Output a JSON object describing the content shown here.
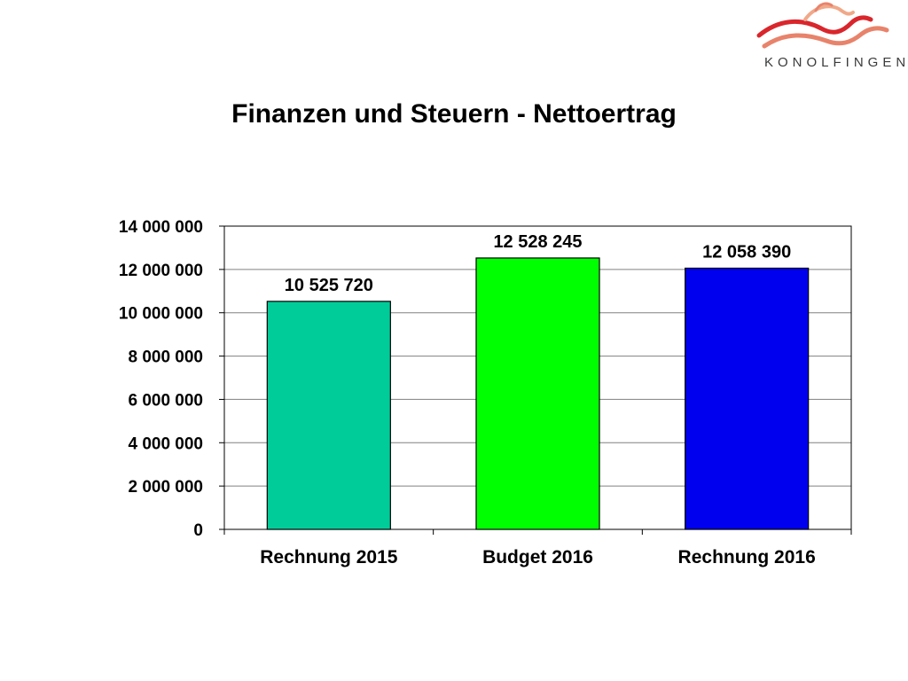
{
  "logo": {
    "text": "KONOLFINGEN",
    "colors": [
      "#d9262c",
      "#e8836b",
      "#f0a889"
    ]
  },
  "chart_data": {
    "type": "bar",
    "title": "Finanzen und Steuern - Nettoertrag",
    "categories": [
      "Rechnung 2015",
      "Budget 2016",
      "Rechnung 2016"
    ],
    "values": [
      10525720,
      12528245,
      12058390
    ],
    "value_labels": [
      "10 525 720",
      "12 528 245",
      "12 058 390"
    ],
    "colors": [
      "#00cc99",
      "#00ff00",
      "#0000ee"
    ],
    "ylim": [
      0,
      14000000
    ],
    "yticks": [
      0,
      2000000,
      4000000,
      6000000,
      8000000,
      10000000,
      12000000,
      14000000
    ],
    "ytick_labels": [
      "0",
      "2 000 000",
      "4 000 000",
      "6 000 000",
      "8 000 000",
      "10 000 000",
      "12 000 000",
      "14 000 000"
    ],
    "xlabel": "",
    "ylabel": "",
    "grid": true,
    "legend": "none"
  }
}
